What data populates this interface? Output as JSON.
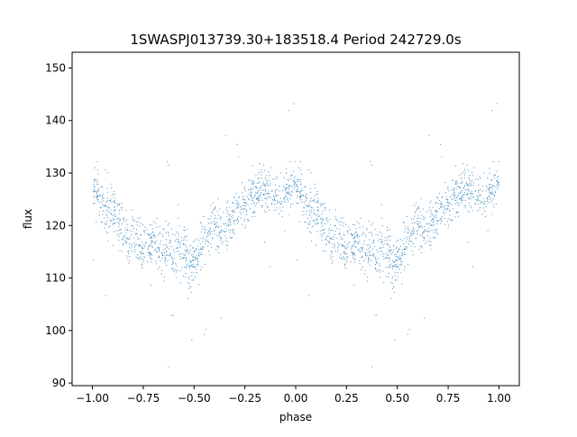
{
  "chart_data": {
    "type": "scatter",
    "title": "1SWASPJ013739.30+183518.4 Period 242729.0s",
    "xlabel": "phase",
    "ylabel": "flux",
    "xlim": [
      -1.1,
      1.1
    ],
    "ylim": [
      89.5,
      153
    ],
    "grid": false,
    "legend": "none",
    "marker_color": "#1f77b4",
    "x_ticks": [
      -1.0,
      -0.75,
      -0.5,
      -0.25,
      0.0,
      0.25,
      0.5,
      0.75,
      1.0
    ],
    "x_tick_labels": [
      "−1.00",
      "−0.75",
      "−0.50",
      "−0.25",
      "0.00",
      "0.25",
      "0.50",
      "0.75",
      "1.00"
    ],
    "y_ticks": [
      90,
      100,
      110,
      120,
      130,
      140,
      150
    ],
    "y_tick_labels": [
      "90",
      "100",
      "110",
      "120",
      "130",
      "140",
      "150"
    ],
    "light_curve": {
      "phase": [
        0.0,
        0.02,
        0.05,
        0.08,
        0.1,
        0.13,
        0.15,
        0.18,
        0.2,
        0.23,
        0.25,
        0.28,
        0.3,
        0.33,
        0.35,
        0.38,
        0.4,
        0.42,
        0.45,
        0.48,
        0.5,
        0.52,
        0.55,
        0.58,
        0.6,
        0.62,
        0.65,
        0.68,
        0.7,
        0.72,
        0.75,
        0.78,
        0.8,
        0.82,
        0.85,
        0.88,
        0.9,
        0.92,
        0.95,
        0.98,
        1.0
      ],
      "flux": [
        129,
        126,
        124,
        123,
        122,
        121,
        119,
        117,
        117,
        117,
        116,
        117,
        117,
        116,
        115,
        117,
        114,
        117,
        115,
        111,
        113,
        115,
        117,
        120,
        121,
        119,
        120,
        121,
        122,
        123,
        124,
        126,
        126,
        127,
        127,
        126,
        126,
        125,
        126,
        127,
        129
      ],
      "scatter": [
        3,
        4,
        4,
        4,
        4,
        3.5,
        3.5,
        3.5,
        3.5,
        3.5,
        3.5,
        3.5,
        3.5,
        3.5,
        3.5,
        3.5,
        3.5,
        4,
        4,
        4,
        3,
        3.5,
        3.5,
        3.5,
        3.5,
        3.5,
        3,
        3,
        3,
        3,
        3,
        3,
        3,
        3,
        3,
        3,
        3,
        3,
        3,
        3,
        3
      ]
    }
  }
}
